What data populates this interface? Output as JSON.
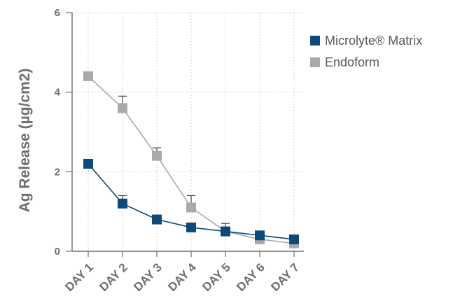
{
  "chart_data": {
    "type": "line",
    "categories": [
      "DAY 1",
      "DAY 2",
      "DAY 3",
      "DAY 4",
      "DAY 5",
      "DAY 6",
      "DAY 7"
    ],
    "ylabel": "Ag Release (µg/cm2)",
    "xlabel": "",
    "ylim": [
      0,
      6
    ],
    "yticks": [
      0,
      2,
      4,
      6
    ],
    "grid": true,
    "legend_position": "top-right",
    "series": [
      {
        "name": "Microlyte® Matrix",
        "color": "#0d4a7c",
        "values": [
          2.2,
          1.2,
          0.8,
          0.6,
          0.5,
          0.4,
          0.3
        ],
        "error_upper": [
          null,
          0.2,
          null,
          null,
          0.2,
          null,
          null
        ]
      },
      {
        "name": "Endoform",
        "color": "#a7a9ac",
        "values": [
          4.4,
          3.6,
          2.4,
          1.1,
          0.5,
          0.3,
          0.2
        ],
        "error_upper": [
          null,
          0.3,
          0.2,
          0.3,
          null,
          null,
          null
        ]
      }
    ]
  }
}
